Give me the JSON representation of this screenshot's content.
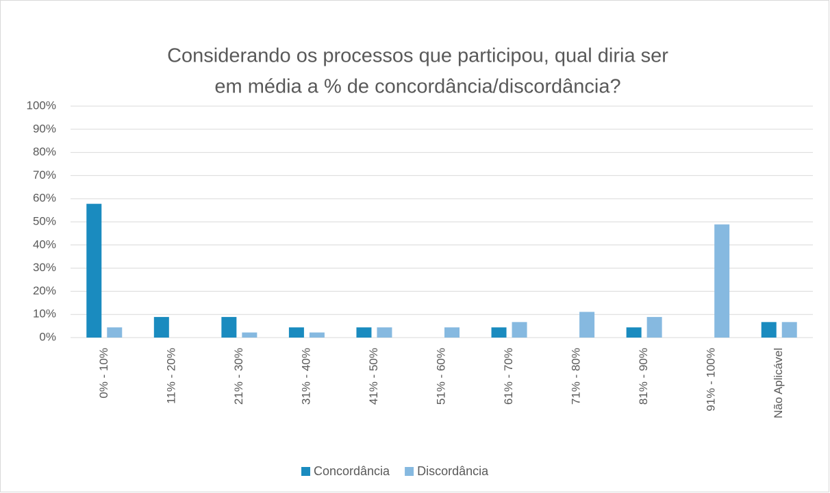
{
  "chart_data": {
    "type": "bar",
    "title": [
      "Considerando os processos que participou, qual diria ser",
      "em média a % de concordância/discordância?"
    ],
    "categories": [
      "0% - 10%",
      "11% - 20%",
      "21% - 30%",
      "31% - 40%",
      "41% - 50%",
      "51% - 60%",
      "61% - 70%",
      "71% - 80%",
      "81% - 90%",
      "91% - 100%",
      "Não Aplicável"
    ],
    "series": [
      {
        "name": "Concordância",
        "color": "#1a8bbf",
        "values": [
          57.8,
          8.9,
          8.9,
          4.4,
          4.4,
          0,
          4.4,
          0,
          4.4,
          0,
          6.7
        ]
      },
      {
        "name": "Discordância",
        "color": "#86b9e0",
        "values": [
          4.4,
          0,
          2.2,
          2.2,
          4.4,
          4.4,
          6.7,
          11.1,
          8.9,
          48.9,
          6.7
        ]
      }
    ],
    "ylim": [
      0,
      100
    ],
    "yticks": [
      {
        "value": 0,
        "label": "0%"
      },
      {
        "value": 10,
        "label": "10%"
      },
      {
        "value": 20,
        "label": "20%"
      },
      {
        "value": 30,
        "label": "30%"
      },
      {
        "value": 40,
        "label": "40%"
      },
      {
        "value": 50,
        "label": "50%"
      },
      {
        "value": 60,
        "label": "60%"
      },
      {
        "value": 70,
        "label": "70%"
      },
      {
        "value": 80,
        "label": "80%"
      },
      {
        "value": 90,
        "label": "90%"
      },
      {
        "value": 100,
        "label": "100%"
      }
    ],
    "grid": true,
    "legend": "bottom"
  }
}
